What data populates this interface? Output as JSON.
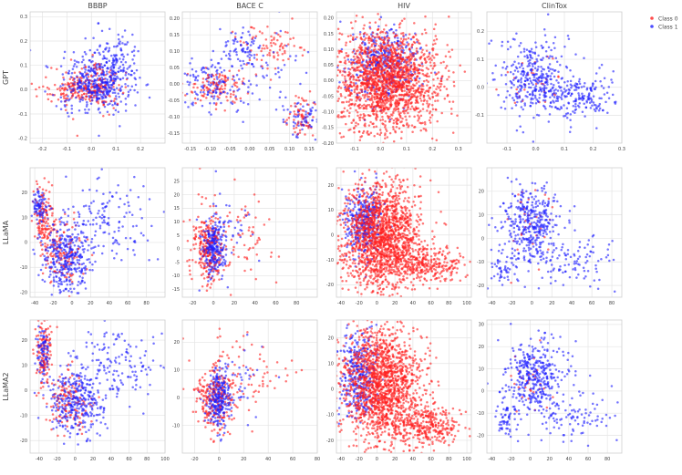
{
  "legend": {
    "placement": "top-right",
    "entries": [
      {
        "label": "Class 0",
        "color": "#ff2020"
      },
      {
        "label": "Class 1",
        "color": "#1f1fff"
      }
    ]
  },
  "colors": {
    "class0": "#ff2020",
    "class1": "#1f1fff",
    "grid": "#e4e4e4",
    "frame": "#cfcfcf",
    "text": "#444444"
  },
  "columns": [
    "BBBP",
    "BACE C",
    "HIV",
    "ClinTox"
  ],
  "rows": [
    "GPT",
    "LLaMA",
    "LLaMA2"
  ],
  "chart_data": [
    {
      "type": "scatter",
      "row_label": "GPT",
      "title": "BBBP",
      "xlim": [
        -0.25,
        0.3
      ],
      "ylim": [
        -0.22,
        0.32
      ],
      "xticks": [
        -0.2,
        -0.1,
        0.0,
        0.1,
        0.2
      ],
      "xtick_labels": [
        "-0.2",
        "-0.1",
        "0.0",
        "0.1",
        "0.2"
      ],
      "yticks": [
        -0.2,
        -0.1,
        0.0,
        0.1,
        0.2,
        0.3
      ],
      "ytick_labels": [
        "-0.2",
        "-0.1",
        "0.0",
        "0.1",
        "0.2",
        "0.3"
      ],
      "series": [
        {
          "name": "Class 0",
          "n": 260,
          "clusters": [
            [
              -0.05,
              0.0,
              0.07,
              0.03,
              0.55
            ],
            [
              0.02,
              0.02,
              0.05,
              0.05,
              0.45
            ]
          ]
        },
        {
          "name": "Class 1",
          "n": 520,
          "clusters": [
            [
              0.02,
              0.03,
              0.07,
              0.06,
              0.8
            ],
            [
              0.1,
              0.1,
              0.05,
              0.08,
              0.2
            ]
          ]
        }
      ]
    },
    {
      "type": "scatter",
      "row_label": "GPT",
      "title": "BACE C",
      "xlim": [
        -0.17,
        0.17
      ],
      "ylim": [
        -0.18,
        0.22
      ],
      "xticks": [
        -0.15,
        -0.1,
        -0.05,
        0.0,
        0.05,
        0.1,
        0.15
      ],
      "xtick_labels": [
        "-0.15",
        "-0.10",
        "-0.05",
        "0.00",
        "0.05",
        "0.10",
        "0.15"
      ],
      "yticks": [
        -0.15,
        -0.1,
        -0.05,
        0.0,
        0.05,
        0.1,
        0.15,
        0.2
      ],
      "ytick_labels": [
        "-0.15",
        "-0.10",
        "-0.05",
        "0.00",
        "0.05",
        "0.10",
        "0.15",
        "0.20"
      ],
      "series": [
        {
          "name": "Class 0",
          "n": 260,
          "clusters": [
            [
              -0.08,
              -0.01,
              0.04,
              0.03,
              0.45
            ],
            [
              0.05,
              0.12,
              0.04,
              0.04,
              0.3
            ],
            [
              0.13,
              -0.1,
              0.02,
              0.03,
              0.25
            ]
          ]
        },
        {
          "name": "Class 1",
          "n": 320,
          "clusters": [
            [
              -0.1,
              0.0,
              0.04,
              0.04,
              0.4
            ],
            [
              -0.02,
              0.11,
              0.03,
              0.03,
              0.25
            ],
            [
              0.13,
              -0.11,
              0.02,
              0.03,
              0.2
            ],
            [
              0.05,
              0.03,
              0.05,
              0.05,
              0.15
            ]
          ]
        }
      ]
    },
    {
      "type": "scatter",
      "row_label": "GPT",
      "title": "HIV",
      "xlim": [
        -0.17,
        0.35
      ],
      "ylim": [
        -0.2,
        0.22
      ],
      "xticks": [
        -0.1,
        0.0,
        0.1,
        0.2,
        0.3
      ],
      "xtick_labels": [
        "-0.1",
        "0.0",
        "0.1",
        "0.2",
        "0.3"
      ],
      "yticks": [
        -0.2,
        -0.15,
        -0.1,
        -0.05,
        0.0,
        0.05,
        0.1,
        0.15,
        0.2
      ],
      "ytick_labels": [
        "-0.20",
        "-0.15",
        "-0.10",
        "-0.05",
        "0.00",
        "0.05",
        "0.10",
        "0.15",
        "0.20"
      ],
      "series": [
        {
          "name": "Class 0",
          "n": 1800,
          "clusters": [
            [
              0.02,
              0.0,
              0.1,
              0.08,
              1.0
            ]
          ]
        },
        {
          "name": "Class 1",
          "n": 380,
          "clusters": [
            [
              0.02,
              0.06,
              0.07,
              0.06,
              1.0
            ]
          ]
        }
      ]
    },
    {
      "type": "scatter",
      "row_label": "GPT",
      "title": "ClinTox",
      "xlim": [
        -0.17,
        0.3
      ],
      "ylim": [
        -0.2,
        0.27
      ],
      "xticks": [
        -0.1,
        0.0,
        0.1,
        0.2,
        0.3
      ],
      "xtick_labels": [
        "-0.1",
        "0.0",
        "0.1",
        "0.2",
        "0.3"
      ],
      "yticks": [
        -0.1,
        0.0,
        0.1,
        0.2
      ],
      "ytick_labels": [
        "-0.1",
        "0.0",
        "0.1",
        "0.2"
      ],
      "series": [
        {
          "name": "Class 0",
          "n": 30,
          "clusters": [
            [
              0.0,
              0.0,
              0.05,
              0.05,
              1.0
            ]
          ]
        },
        {
          "name": "Class 1",
          "n": 520,
          "clusters": [
            [
              0.0,
              0.03,
              0.06,
              0.07,
              0.7
            ],
            [
              0.15,
              -0.03,
              0.06,
              0.04,
              0.3
            ]
          ]
        }
      ]
    },
    {
      "type": "scatter",
      "row_label": "LLaMA",
      "title": "BBBP",
      "xlim": [
        -45,
        100
      ],
      "ylim": [
        -22,
        30
      ],
      "xticks": [
        -40,
        -20,
        0,
        20,
        40,
        60,
        80
      ],
      "xtick_labels": [
        "-40",
        "-20",
        "0",
        "20",
        "40",
        "60",
        "80"
      ],
      "yticks": [
        -20,
        -10,
        0,
        10,
        20
      ],
      "ytick_labels": [
        "-20",
        "-10",
        "0",
        "10",
        "20"
      ],
      "series": [
        {
          "name": "Class 0",
          "n": 260,
          "clusters": [
            [
              -30,
              10,
              6,
              6,
              0.5
            ],
            [
              -10,
              -5,
              12,
              6,
              0.5
            ]
          ]
        },
        {
          "name": "Class 1",
          "n": 560,
          "clusters": [
            [
              -5,
              -5,
              15,
              7,
              0.6
            ],
            [
              -35,
              15,
              4,
              3,
              0.15
            ],
            [
              40,
              8,
              25,
              8,
              0.25
            ]
          ]
        }
      ]
    },
    {
      "type": "scatter",
      "row_label": "LLaMA",
      "title": "BACE C",
      "xlim": [
        -30,
        100
      ],
      "ylim": [
        -18,
        30
      ],
      "xticks": [
        -20,
        0,
        20,
        40,
        60,
        80
      ],
      "xtick_labels": [
        "-20",
        "0",
        "20",
        "40",
        "60",
        "80"
      ],
      "yticks": [
        -15,
        -10,
        -5,
        0,
        5,
        10,
        15,
        20,
        25
      ],
      "ytick_labels": [
        "-15",
        "-10",
        "-5",
        "0",
        "5",
        "10",
        "15",
        "20",
        "25"
      ],
      "series": [
        {
          "name": "Class 0",
          "n": 300,
          "clusters": [
            [
              -5,
              0,
              8,
              6,
              0.7
            ],
            [
              20,
              5,
              20,
              8,
              0.3
            ]
          ]
        },
        {
          "name": "Class 1",
          "n": 320,
          "clusters": [
            [
              0,
              0,
              5,
              5,
              0.85
            ],
            [
              15,
              5,
              15,
              8,
              0.15
            ]
          ]
        }
      ]
    },
    {
      "type": "scatter",
      "row_label": "LLaMA",
      "title": "HIV",
      "xlim": [
        -45,
        105
      ],
      "ylim": [
        -25,
        27
      ],
      "xticks": [
        -40,
        -20,
        0,
        20,
        40,
        60,
        80,
        100
      ],
      "xtick_labels": [
        "-40",
        "-20",
        "0",
        "20",
        "40",
        "60",
        "80",
        "100"
      ],
      "yticks": [
        -20,
        -10,
        0,
        10,
        20
      ],
      "ytick_labels": [
        "-20",
        "-10",
        "0",
        "10",
        "20"
      ],
      "series": [
        {
          "name": "Class 0",
          "n": 1900,
          "clusters": [
            [
              5,
              0,
              22,
              11,
              0.85
            ],
            [
              55,
              -12,
              20,
              4,
              0.15
            ]
          ]
        },
        {
          "name": "Class 1",
          "n": 360,
          "clusters": [
            [
              -15,
              5,
              10,
              7,
              1.0
            ]
          ]
        }
      ]
    },
    {
      "type": "scatter",
      "row_label": "LLaMA",
      "title": "ClinTox",
      "xlim": [
        -45,
        90
      ],
      "ylim": [
        -25,
        30
      ],
      "xticks": [
        -40,
        -20,
        0,
        20,
        40,
        60,
        80
      ],
      "xtick_labels": [
        "-40",
        "-20",
        "0",
        "20",
        "40",
        "60",
        "80"
      ],
      "yticks": [
        -20,
        -10,
        0,
        10,
        20
      ],
      "ytick_labels": [
        "-20",
        "-10",
        "0",
        "10",
        "20"
      ],
      "series": [
        {
          "name": "Class 0",
          "n": 30,
          "clusters": [
            [
              0,
              5,
              10,
              8,
              1.0
            ]
          ]
        },
        {
          "name": "Class 1",
          "n": 520,
          "clusters": [
            [
              0,
              6,
              15,
              8,
              0.7
            ],
            [
              -30,
              -12,
              6,
              4,
              0.1
            ],
            [
              40,
              -10,
              25,
              5,
              0.2
            ]
          ]
        }
      ]
    },
    {
      "type": "scatter",
      "row_label": "LLaMA2",
      "title": "BBBP",
      "xlim": [
        -50,
        100
      ],
      "ylim": [
        -25,
        28
      ],
      "xticks": [
        -40,
        -20,
        0,
        20,
        40,
        60,
        80,
        100
      ],
      "xtick_labels": [
        "-40",
        "-20",
        "0",
        "20",
        "40",
        "60",
        "80",
        "100"
      ],
      "yticks": [
        -20,
        -10,
        0,
        10,
        20
      ],
      "ytick_labels": [
        "-20",
        "-10",
        "0",
        "10",
        "20"
      ],
      "series": [
        {
          "name": "Class 0",
          "n": 260,
          "clusters": [
            [
              -35,
              15,
              5,
              7,
              0.5
            ],
            [
              -10,
              -5,
              12,
              6,
              0.5
            ]
          ]
        },
        {
          "name": "Class 1",
          "n": 560,
          "clusters": [
            [
              0,
              -5,
              15,
              7,
              0.6
            ],
            [
              -35,
              15,
              4,
              5,
              0.15
            ],
            [
              50,
              10,
              25,
              8,
              0.25
            ]
          ]
        }
      ]
    },
    {
      "type": "scatter",
      "row_label": "LLaMA2",
      "title": "BACE C",
      "xlim": [
        -30,
        80
      ],
      "ylim": [
        -20,
        28
      ],
      "xticks": [
        -20,
        0,
        20,
        40,
        60,
        80
      ],
      "xtick_labels": [
        "-20",
        "0",
        "20",
        "40",
        "60",
        "80"
      ],
      "yticks": [
        -10,
        0,
        10,
        20
      ],
      "ytick_labels": [
        "-10",
        "0",
        "10",
        "20"
      ],
      "series": [
        {
          "name": "Class 0",
          "n": 300,
          "clusters": [
            [
              -5,
              0,
              8,
              6,
              0.7
            ],
            [
              25,
              8,
              20,
              8,
              0.3
            ]
          ]
        },
        {
          "name": "Class 1",
          "n": 320,
          "clusters": [
            [
              0,
              0,
              5,
              5,
              0.85
            ],
            [
              15,
              5,
              15,
              8,
              0.15
            ]
          ]
        }
      ]
    },
    {
      "type": "scatter",
      "row_label": "LLaMA2",
      "title": "HIV",
      "xlim": [
        -45,
        105
      ],
      "ylim": [
        -25,
        27
      ],
      "xticks": [
        -40,
        -20,
        0,
        20,
        40,
        60,
        80,
        100
      ],
      "xtick_labels": [
        "-40",
        "-20",
        "0",
        "20",
        "40",
        "60",
        "80",
        "100"
      ],
      "yticks": [
        -20,
        -10,
        0,
        10,
        20
      ],
      "ytick_labels": [
        "-20",
        "-10",
        "0",
        "10",
        "20"
      ],
      "series": [
        {
          "name": "Class 0",
          "n": 1900,
          "clusters": [
            [
              5,
              2,
              22,
              11,
              0.85
            ],
            [
              55,
              -14,
              20,
              4,
              0.15
            ]
          ]
        },
        {
          "name": "Class 1",
          "n": 360,
          "clusters": [
            [
              -20,
              5,
              10,
              8,
              1.0
            ]
          ]
        }
      ]
    },
    {
      "type": "scatter",
      "row_label": "LLaMA2",
      "title": "ClinTox",
      "xlim": [
        -45,
        95
      ],
      "ylim": [
        -28,
        32
      ],
      "xticks": [
        -40,
        -20,
        0,
        20,
        40,
        60,
        80
      ],
      "xtick_labels": [
        "-40",
        "-20",
        "0",
        "20",
        "40",
        "60",
        "80"
      ],
      "yticks": [
        -20,
        -10,
        0,
        10,
        20,
        30
      ],
      "ytick_labels": [
        "-20",
        "-10",
        "0",
        "10",
        "20",
        "30"
      ],
      "series": [
        {
          "name": "Class 0",
          "n": 30,
          "clusters": [
            [
              0,
              5,
              10,
              8,
              1.0
            ]
          ]
        },
        {
          "name": "Class 1",
          "n": 520,
          "clusters": [
            [
              5,
              8,
              15,
              8,
              0.7
            ],
            [
              -25,
              -12,
              6,
              4,
              0.1
            ],
            [
              40,
              -10,
              25,
              5,
              0.2
            ]
          ]
        }
      ]
    }
  ]
}
